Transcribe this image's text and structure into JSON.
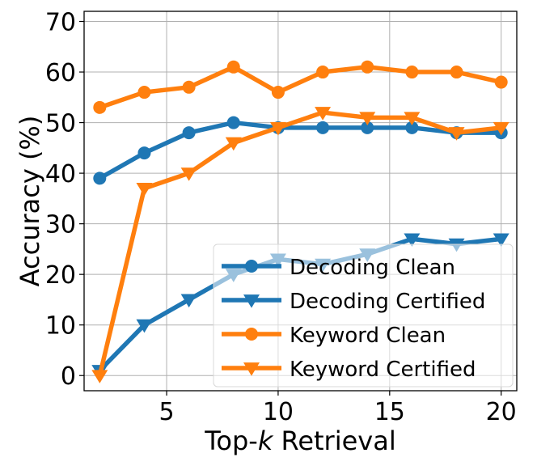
{
  "chart_data": {
    "type": "line",
    "xlabel_prefix": "Top-",
    "xlabel_italic": "k",
    "xlabel_suffix": " Retrieval",
    "ylabel": "Accuracy (%)",
    "xlim": [
      1.3,
      20.7
    ],
    "ylim": [
      -3,
      72
    ],
    "xticks": [
      5,
      10,
      15,
      20
    ],
    "yticks": [
      0,
      10,
      20,
      30,
      40,
      50,
      60,
      70
    ],
    "grid": true,
    "legend_position": "lower-right",
    "x": [
      2,
      4,
      6,
      8,
      10,
      12,
      14,
      16,
      18,
      20
    ],
    "series": [
      {
        "name": "Decoding Clean",
        "color": "#1f77b4",
        "marker": "circle",
        "values": [
          39,
          44,
          48,
          50,
          49,
          49,
          49,
          49,
          48,
          48
        ]
      },
      {
        "name": "Decoding Certified",
        "color": "#1f77b4",
        "marker": "triangle-down",
        "values": [
          1,
          10,
          15,
          20,
          23,
          22,
          24,
          27,
          26,
          27
        ]
      },
      {
        "name": "Keyword Clean",
        "color": "#ff7f0e",
        "marker": "circle",
        "values": [
          53,
          56,
          57,
          61,
          56,
          60,
          61,
          60,
          60,
          58
        ]
      },
      {
        "name": "Keyword Certified",
        "color": "#ff7f0e",
        "marker": "triangle-down",
        "values": [
          0,
          37,
          40,
          46,
          49,
          52,
          51,
          51,
          48,
          49
        ]
      }
    ]
  }
}
